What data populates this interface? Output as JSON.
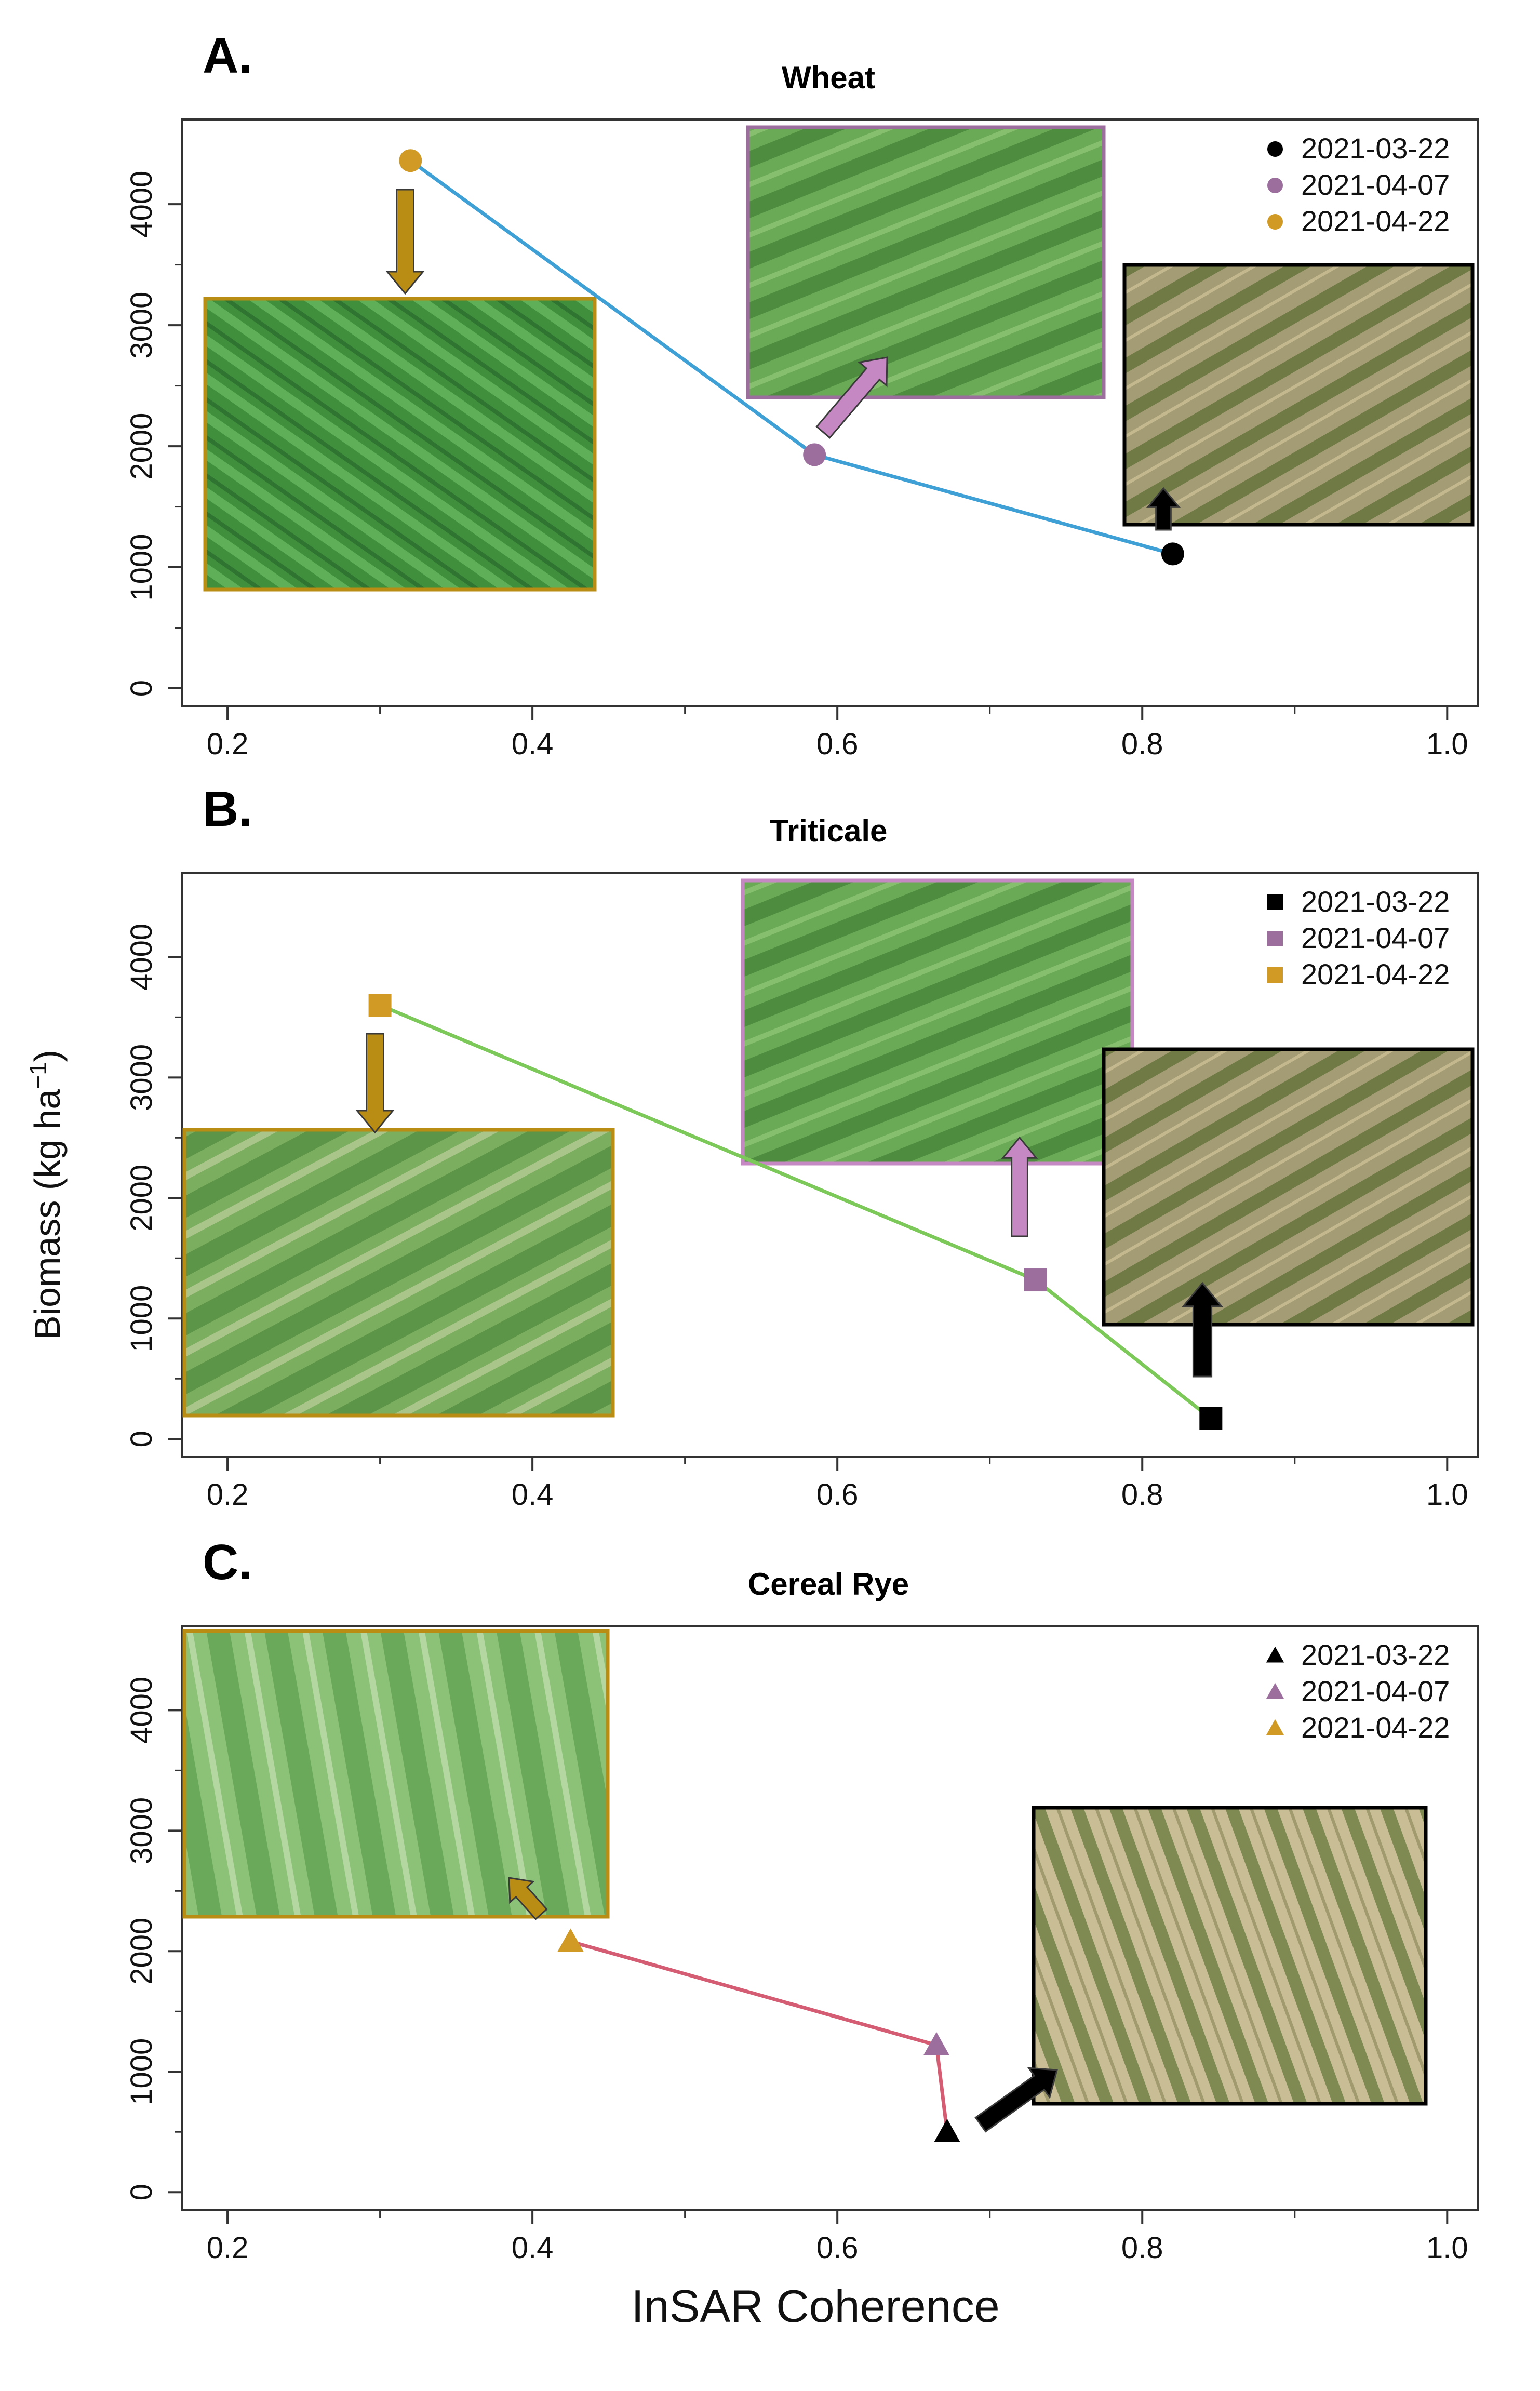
{
  "colors": {
    "date_black": "#000000",
    "date_purple": "#9b6e9e",
    "date_gold": "#d09a25",
    "arrow_gold": "#b98c14",
    "arrow_purple": "#c688c3",
    "wheat_line": "#3fa0d6",
    "triticale_line": "#7cc95a",
    "rye_line": "#d45d74",
    "photo_green": "#5f9c4c",
    "photo_field": "#8b8a5a"
  },
  "y_axis_label": "Biomass (kg ha",
  "y_axis_label_sup": "−1",
  "y_axis_label_end": ")",
  "x_axis_label": "InSAR Coherence",
  "chart_data": [
    {
      "type": "line",
      "panel": "A.",
      "title": "Wheat",
      "marker": "circle",
      "line_color_key": "wheat_line",
      "xlim": [
        0.17,
        1.02
      ],
      "ylim": [
        -150,
        4700
      ],
      "x_ticks": [
        "0.2",
        "0.4",
        "0.6",
        "0.8",
        "1.0"
      ],
      "y_ticks": [
        "0",
        "1000",
        "2000",
        "3000",
        "4000"
      ],
      "legend": [
        "2021-03-22",
        "2021-04-07",
        "2021-04-22"
      ],
      "legend_placement": "top-right",
      "points": [
        {
          "date": "2021-04-22",
          "x": 0.32,
          "y": 4360
        },
        {
          "date": "2021-04-07",
          "x": 0.585,
          "y": 1930
        },
        {
          "date": "2021-03-22",
          "x": 0.82,
          "y": 1110
        }
      ]
    },
    {
      "type": "line",
      "panel": "B.",
      "title": "Triticale",
      "marker": "square",
      "line_color_key": "triticale_line",
      "xlim": [
        0.17,
        1.02
      ],
      "ylim": [
        -150,
        4700
      ],
      "x_ticks": [
        "0.2",
        "0.4",
        "0.6",
        "0.8",
        "1.0"
      ],
      "y_ticks": [
        "0",
        "1000",
        "2000",
        "3000",
        "4000"
      ],
      "legend": [
        "2021-03-22",
        "2021-04-07",
        "2021-04-22"
      ],
      "legend_placement": "top-right",
      "points": [
        {
          "date": "2021-04-22",
          "x": 0.3,
          "y": 3600
        },
        {
          "date": "2021-04-07",
          "x": 0.73,
          "y": 1320
        },
        {
          "date": "2021-03-22",
          "x": 0.845,
          "y": 170
        }
      ]
    },
    {
      "type": "line",
      "panel": "C.",
      "title": "Cereal Rye",
      "marker": "triangle",
      "line_color_key": "rye_line",
      "xlim": [
        0.17,
        1.02
      ],
      "ylim": [
        -150,
        4700
      ],
      "x_ticks": [
        "0.2",
        "0.4",
        "0.6",
        "0.8",
        "1.0"
      ],
      "y_ticks": [
        "0",
        "1000",
        "2000",
        "3000",
        "4000"
      ],
      "legend": [
        "2021-03-22",
        "2021-04-07",
        "2021-04-22"
      ],
      "legend_placement": "top-right",
      "points": [
        {
          "date": "2021-04-22",
          "x": 0.425,
          "y": 2080
        },
        {
          "date": "2021-04-07",
          "x": 0.665,
          "y": 1220
        },
        {
          "date": "2021-03-22",
          "x": 0.672,
          "y": 500
        }
      ]
    }
  ]
}
